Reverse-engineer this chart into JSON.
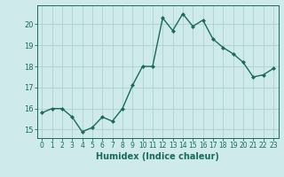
{
  "x": [
    0,
    1,
    2,
    3,
    4,
    5,
    6,
    7,
    8,
    9,
    10,
    11,
    12,
    13,
    14,
    15,
    16,
    17,
    18,
    19,
    20,
    21,
    22,
    23
  ],
  "y": [
    15.8,
    16.0,
    16.0,
    15.6,
    14.9,
    15.1,
    15.6,
    15.4,
    16.0,
    17.1,
    18.0,
    18.0,
    20.3,
    19.7,
    20.5,
    19.9,
    20.2,
    19.3,
    18.9,
    18.6,
    18.2,
    17.5,
    17.6,
    17.9
  ],
  "xlabel": "Humidex (Indice chaleur)",
  "xlim_min": -0.5,
  "xlim_max": 23.5,
  "ylim_min": 14.6,
  "ylim_max": 20.9,
  "yticks": [
    15,
    16,
    17,
    18,
    19,
    20
  ],
  "xticks": [
    0,
    1,
    2,
    3,
    4,
    5,
    6,
    7,
    8,
    9,
    10,
    11,
    12,
    13,
    14,
    15,
    16,
    17,
    18,
    19,
    20,
    21,
    22,
    23
  ],
  "line_color": "#1a6b5a",
  "marker": "D",
  "marker_size": 2.0,
  "background_color": "#ceeaea",
  "grid_color": "#aed0d0",
  "tick_label_color": "#1a6b5a",
  "label_color": "#1a6b5a",
  "line_width": 1.0,
  "xlabel_fontsize": 7,
  "ytick_fontsize": 6,
  "xtick_fontsize": 5.5,
  "spine_color": "#1a6b5a"
}
